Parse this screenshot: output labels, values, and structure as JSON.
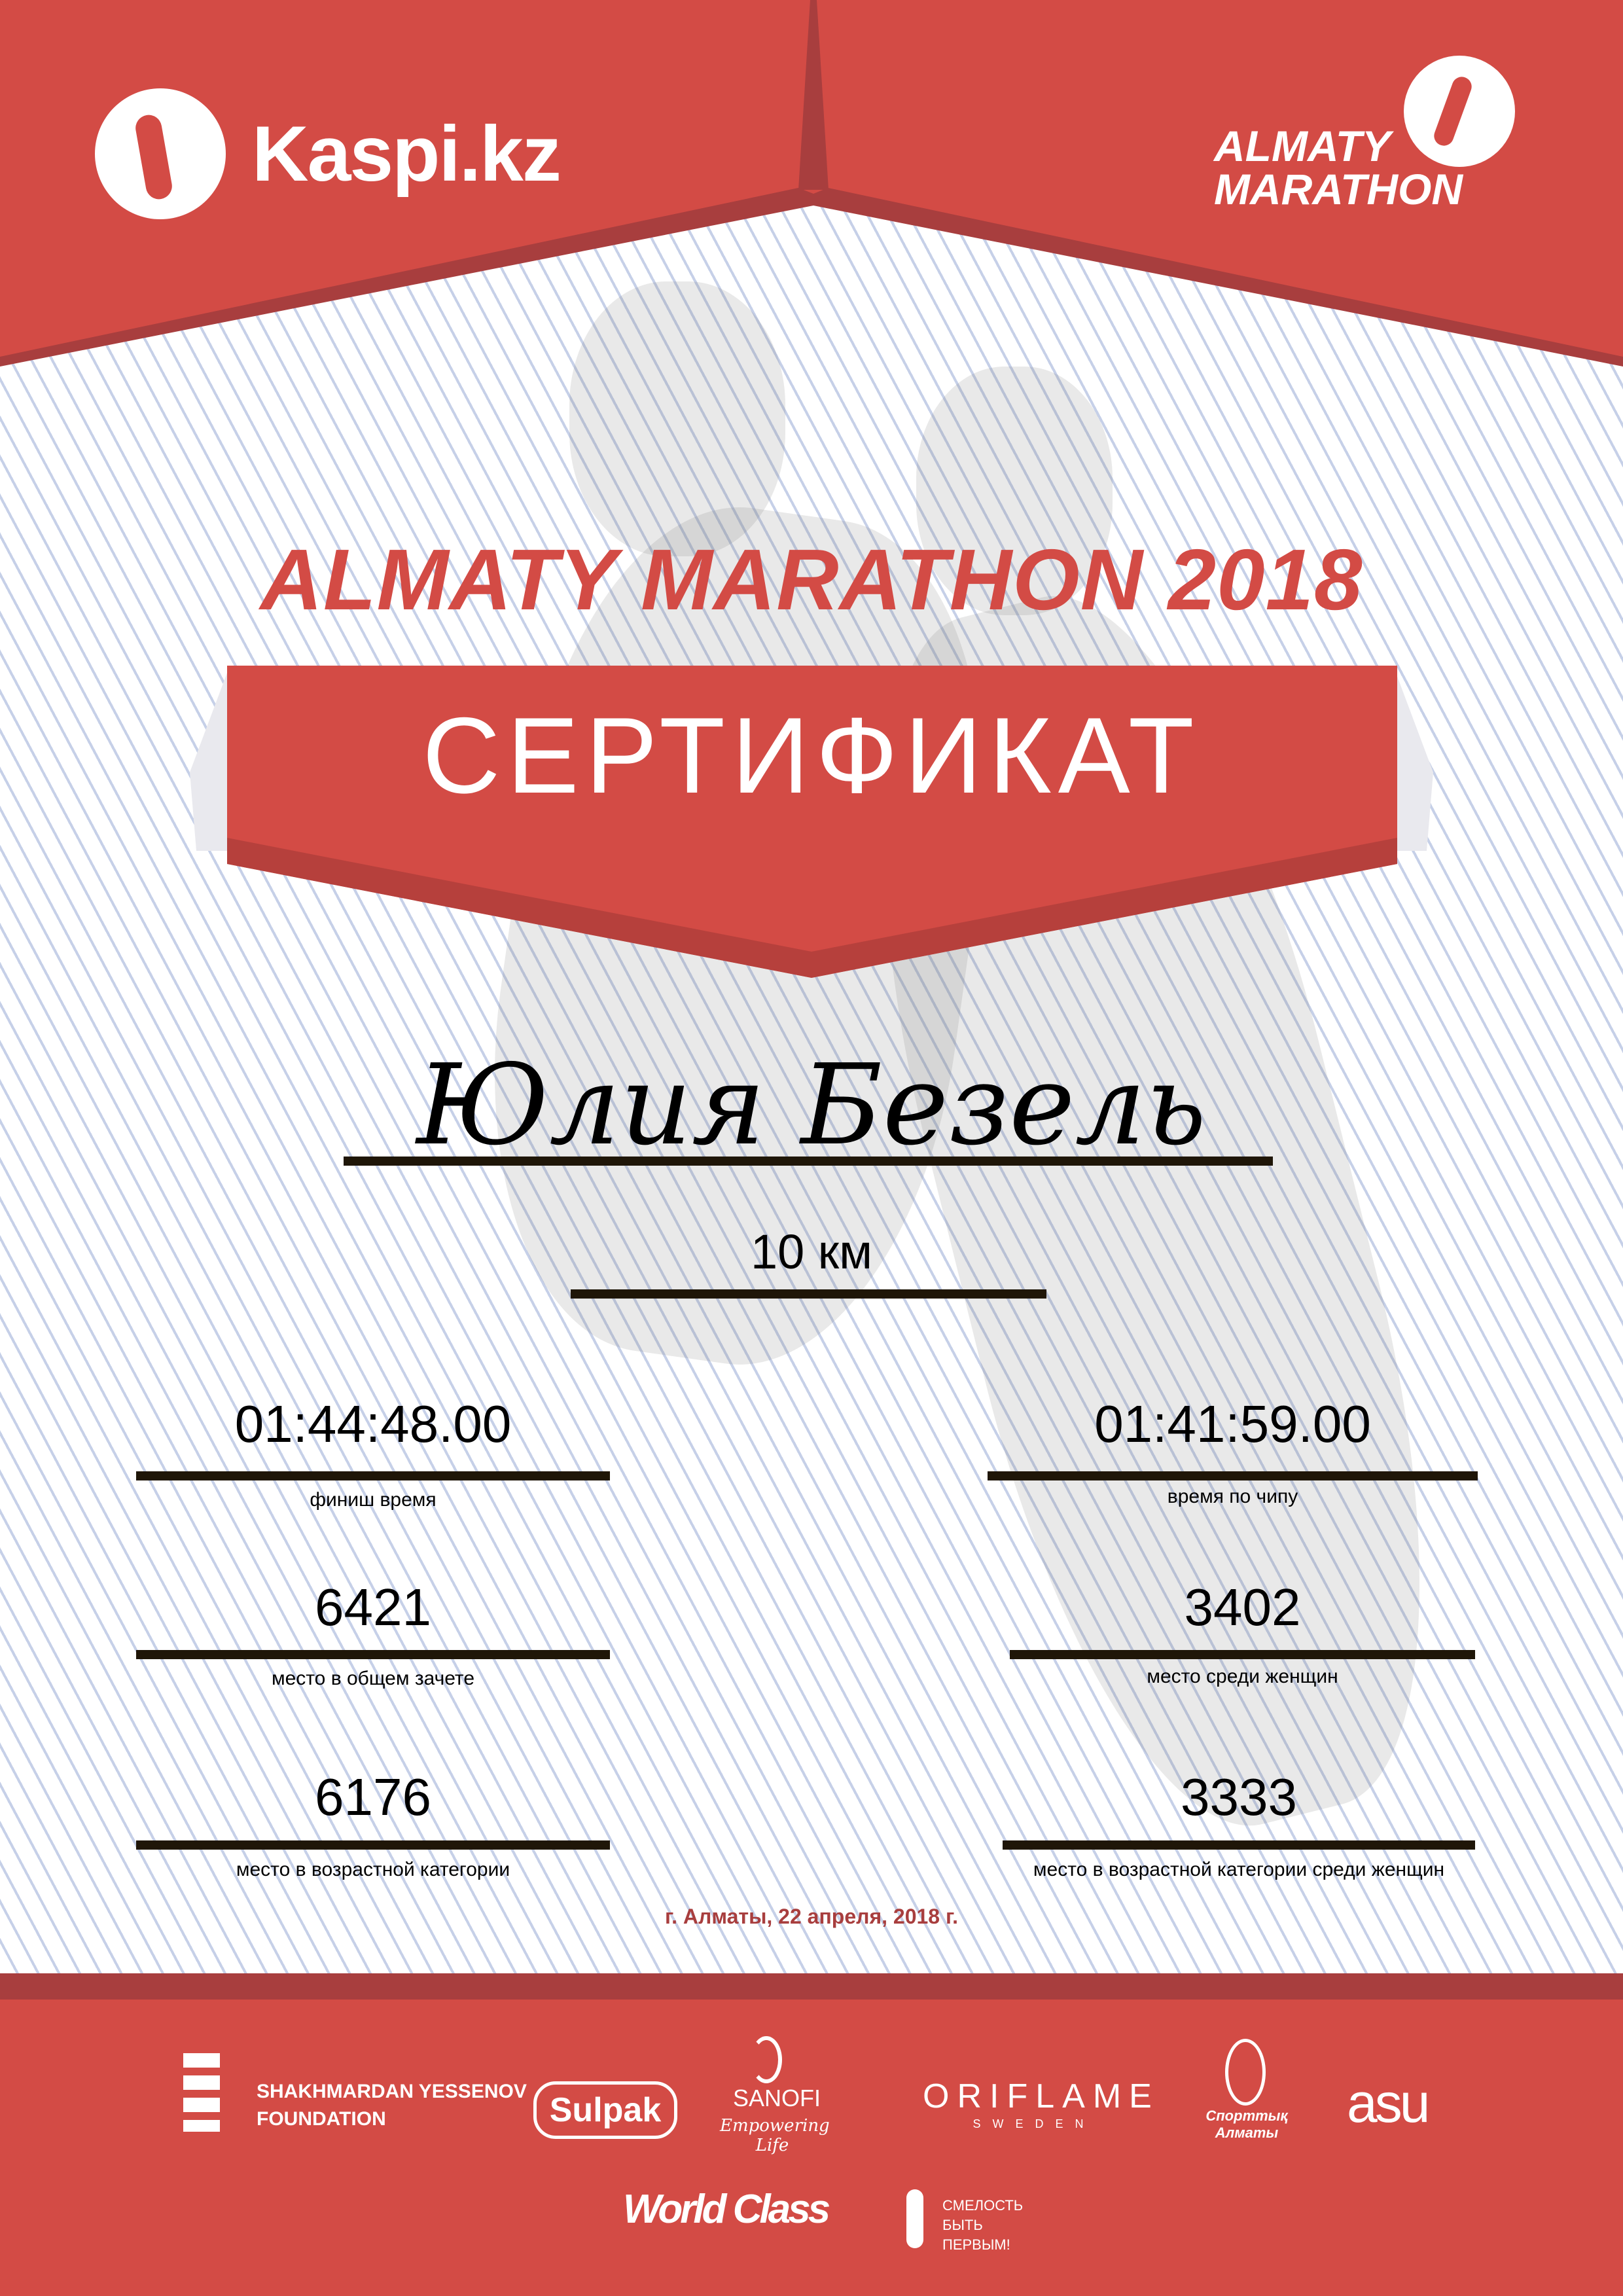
{
  "header": {
    "kaspi_logo": "Kaspi.kz",
    "marathon_logo_line1": "ALMATY",
    "marathon_logo_line2": "MARATHON"
  },
  "title": "ALMATY MARATHON 2018",
  "certificate_label": "СЕРТИФИКАТ",
  "participant_name": "Юлия Безель",
  "distance": "10 км",
  "results": {
    "finish_time": {
      "value": "01:44:48.00",
      "label": "финиш время"
    },
    "chip_time": {
      "value": "01:41:59.00",
      "label": "время по чипу"
    },
    "overall_place": {
      "value": "6421",
      "label": "место в общем зачете"
    },
    "women_place": {
      "value": "3402",
      "label": "место среди женщин"
    },
    "age_place": {
      "value": "6176",
      "label": "место в возрастной категории"
    },
    "age_women_place": {
      "value": "3333",
      "label": "место в возрастной категории среди женщин"
    }
  },
  "date": "г. Алматы, 22 апреля, 2018 г.",
  "sponsors": {
    "yessenov_line1": "SHAKHMARDAN YESSENOV",
    "yessenov_line2": "FOUNDATION",
    "sulpak": "Sulpak",
    "sanofi": "SANOFI",
    "sanofi_tagline": "Empowering Life",
    "oriflame": "ORIFLAME",
    "oriflame_sub": "SWEDEN",
    "sport_almaty": "Спорттық Алматы",
    "asu": "asu",
    "worldclass": "World Class",
    "fund_line1": "СМЕЛОСТЬ",
    "fund_line2": "БЫТЬ",
    "fund_line3": "ПЕРВЫМ!"
  },
  "colors": {
    "brand_red": "#d34b45",
    "dark_red": "#a83e3e",
    "line": "#1f1608"
  }
}
